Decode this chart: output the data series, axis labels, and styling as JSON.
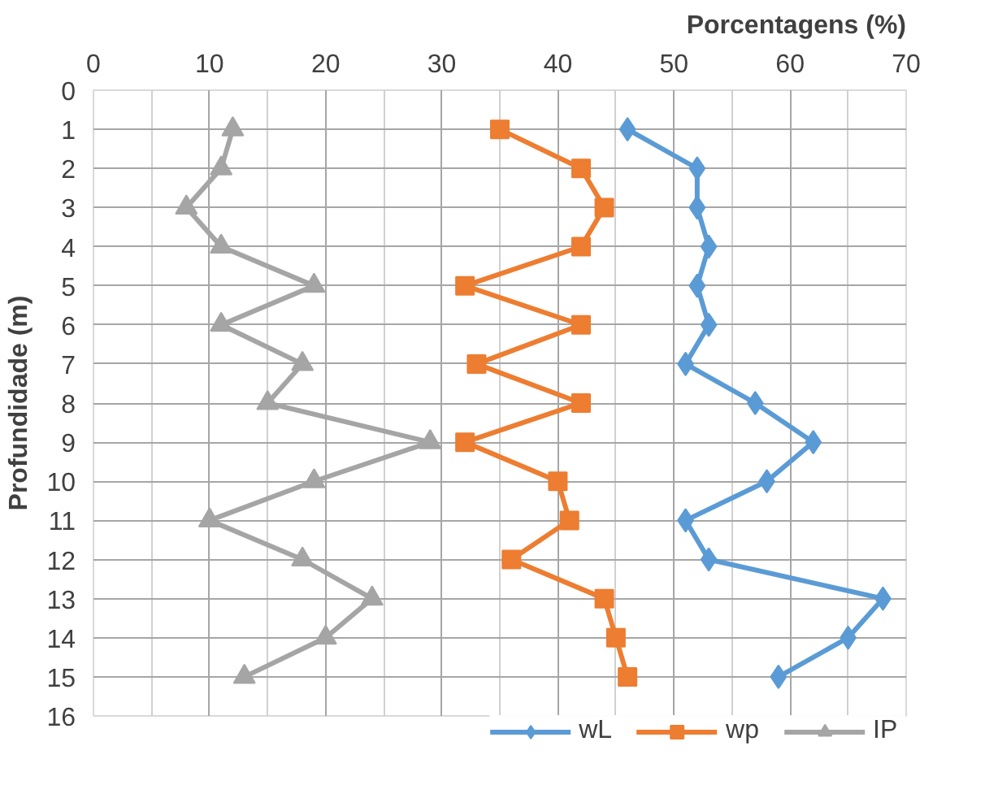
{
  "chart_data": {
    "type": "line",
    "orientation": "horizontal",
    "xlabel": "Porcentagens (%)",
    "ylabel": "Profundidade (m)",
    "x": [
      1,
      2,
      3,
      4,
      5,
      6,
      7,
      8,
      9,
      10,
      11,
      12,
      13,
      14,
      15
    ],
    "series": [
      {
        "name": "wL",
        "color": "#5b9bd5",
        "marker": "diamond",
        "values": [
          46,
          52,
          52,
          53,
          52,
          53,
          51,
          57,
          62,
          58,
          51,
          53,
          68,
          65,
          59
        ]
      },
      {
        "name": "wp",
        "color": "#ed7d31",
        "marker": "square",
        "values": [
          35,
          42,
          44,
          42,
          32,
          42,
          33,
          42,
          32,
          40,
          41,
          36,
          44,
          45,
          46
        ]
      },
      {
        "name": "IP",
        "color": "#a5a5a5",
        "marker": "triangle",
        "values": [
          12,
          11,
          8,
          11,
          19,
          11,
          18,
          15,
          29,
          19,
          10,
          18,
          24,
          20,
          13
        ]
      }
    ],
    "xlim": [
      0,
      70
    ],
    "xticks": [
      0,
      10,
      20,
      30,
      40,
      50,
      60,
      70
    ],
    "ylim": [
      16,
      0
    ],
    "yticks": [
      0,
      1,
      2,
      3,
      4,
      5,
      6,
      7,
      8,
      9,
      10,
      11,
      12,
      13,
      14,
      15,
      16
    ],
    "grid": true,
    "legend": "bottom",
    "line_style": "solid"
  }
}
